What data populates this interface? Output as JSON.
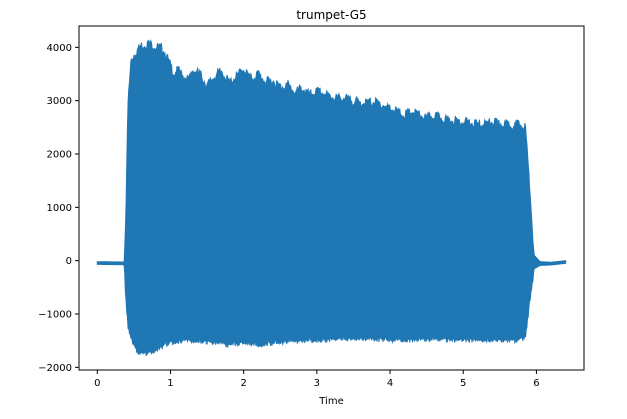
{
  "chart_data": {
    "type": "area",
    "title": "trumpet-G5",
    "xlabel": "Time",
    "ylabel": "",
    "xlim": [
      -0.25,
      6.65
    ],
    "ylim": [
      -2050,
      4400
    ],
    "xticks": [
      0,
      1,
      2,
      3,
      4,
      5,
      6
    ],
    "yticks": [
      -2000,
      -1000,
      0,
      1000,
      2000,
      3000,
      4000
    ],
    "ytick_labels": [
      "−2000",
      "−1000",
      "0",
      "1000",
      "2000",
      "3000",
      "4000"
    ],
    "grid": false,
    "color": "#1f77b4",
    "series": [
      {
        "upper": [
          [
            0.0,
            -20
          ],
          [
            0.37,
            -25
          ],
          [
            0.39,
            1000
          ],
          [
            0.42,
            3000
          ],
          [
            0.46,
            3800
          ],
          [
            0.52,
            3950
          ],
          [
            0.6,
            4080
          ],
          [
            0.7,
            4120
          ],
          [
            0.8,
            4060
          ],
          [
            0.9,
            4020
          ],
          [
            1.0,
            3700
          ],
          [
            1.05,
            3550
          ],
          [
            1.1,
            3620
          ],
          [
            1.15,
            3550
          ],
          [
            1.25,
            3420
          ],
          [
            1.3,
            3620
          ],
          [
            1.4,
            3550
          ],
          [
            1.5,
            3330
          ],
          [
            1.6,
            3500
          ],
          [
            1.7,
            3600
          ],
          [
            1.8,
            3380
          ],
          [
            1.9,
            3500
          ],
          [
            2.0,
            3640
          ],
          [
            2.1,
            3450
          ],
          [
            2.2,
            3550
          ],
          [
            2.3,
            3400
          ],
          [
            2.4,
            3420
          ],
          [
            2.5,
            3300
          ],
          [
            2.6,
            3350
          ],
          [
            2.7,
            3200
          ],
          [
            2.8,
            3280
          ],
          [
            2.9,
            3150
          ],
          [
            3.0,
            3220
          ],
          [
            3.2,
            3120
          ],
          [
            3.4,
            3080
          ],
          [
            3.6,
            3000
          ],
          [
            3.8,
            3020
          ],
          [
            3.9,
            2960
          ],
          [
            4.0,
            2900
          ],
          [
            4.2,
            2780
          ],
          [
            4.3,
            2840
          ],
          [
            4.5,
            2720
          ],
          [
            4.6,
            2760
          ],
          [
            4.8,
            2680
          ],
          [
            5.0,
            2650
          ],
          [
            5.2,
            2600
          ],
          [
            5.4,
            2640
          ],
          [
            5.6,
            2600
          ],
          [
            5.75,
            2600
          ],
          [
            5.85,
            2550
          ],
          [
            5.92,
            1200
          ],
          [
            5.97,
            100
          ],
          [
            6.05,
            -20
          ],
          [
            6.2,
            -30
          ],
          [
            6.4,
            0
          ]
        ],
        "lower": [
          [
            0.0,
            -70
          ],
          [
            0.37,
            -75
          ],
          [
            0.39,
            -700
          ],
          [
            0.42,
            -1200
          ],
          [
            0.48,
            -1500
          ],
          [
            0.55,
            -1650
          ],
          [
            0.65,
            -1700
          ],
          [
            0.8,
            -1620
          ],
          [
            0.9,
            -1550
          ],
          [
            1.0,
            -1470
          ],
          [
            1.1,
            -1500
          ],
          [
            1.2,
            -1440
          ],
          [
            1.4,
            -1450
          ],
          [
            1.6,
            -1480
          ],
          [
            1.8,
            -1520
          ],
          [
            2.0,
            -1500
          ],
          [
            2.2,
            -1530
          ],
          [
            2.5,
            -1480
          ],
          [
            2.8,
            -1450
          ],
          [
            3.0,
            -1440
          ],
          [
            3.3,
            -1420
          ],
          [
            3.6,
            -1410
          ],
          [
            3.9,
            -1420
          ],
          [
            4.2,
            -1440
          ],
          [
            4.5,
            -1420
          ],
          [
            4.8,
            -1430
          ],
          [
            5.1,
            -1440
          ],
          [
            5.4,
            -1440
          ],
          [
            5.7,
            -1440
          ],
          [
            5.85,
            -1400
          ],
          [
            5.92,
            -600
          ],
          [
            5.97,
            -150
          ],
          [
            6.05,
            -90
          ],
          [
            6.2,
            -80
          ],
          [
            6.4,
            -50
          ]
        ]
      }
    ]
  }
}
